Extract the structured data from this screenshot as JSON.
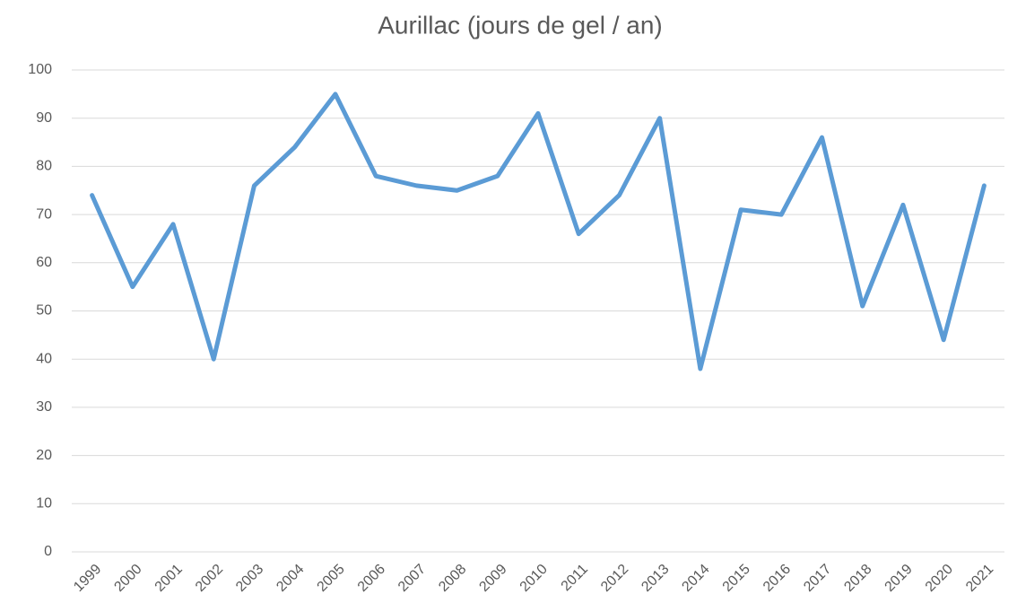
{
  "chart_data": {
    "type": "line",
    "title": "Aurillac (jours de gel / an)",
    "categories": [
      "1999",
      "2000",
      "2001",
      "2002",
      "2003",
      "2004",
      "2005",
      "2006",
      "2007",
      "2008",
      "2009",
      "2010",
      "2011",
      "2012",
      "2013",
      "2014",
      "2015",
      "2016",
      "2017",
      "2018",
      "2019",
      "2020",
      "2021"
    ],
    "values": [
      74,
      55,
      68,
      40,
      76,
      84,
      95,
      78,
      76,
      75,
      78,
      91,
      66,
      74,
      90,
      38,
      71,
      70,
      86,
      51,
      72,
      44,
      76
    ],
    "color": "#5b9bd5",
    "ylim": [
      0,
      100
    ],
    "yticks": [
      0,
      10,
      20,
      30,
      40,
      50,
      60,
      70,
      80,
      90,
      100
    ],
    "grid": true
  }
}
